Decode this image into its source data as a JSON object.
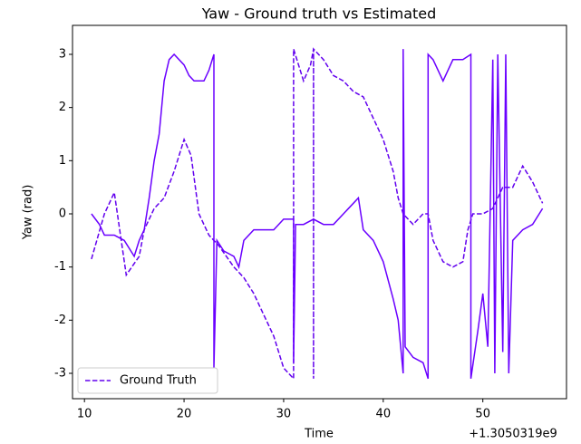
{
  "chart_data": {
    "type": "line",
    "title": "Yaw - Ground truth vs Estimated",
    "xlabel": "Time",
    "ylabel": "Yaw (rad)",
    "x_offset_label": "+1.3050319e9",
    "xlim": [
      8.8,
      58.4
    ],
    "ylim": [
      -3.477,
      3.545
    ],
    "xticks": [
      10,
      20,
      30,
      40,
      50
    ],
    "yticks": [
      -3,
      -2,
      -1,
      0,
      1,
      2,
      3
    ],
    "legend": "lower left",
    "series": [
      {
        "name": "Ground Truth",
        "color": "#6200ee",
        "dash": "dashed",
        "x": [
          10.7,
          12,
          13,
          14.2,
          15.5,
          16,
          17,
          18,
          19,
          20,
          20.7,
          21.5,
          22.5,
          23.5,
          25,
          26,
          27,
          28,
          29,
          30,
          31,
          31,
          31.5,
          32,
          32.7,
          33,
          33,
          33,
          34,
          35,
          36,
          37,
          38,
          39,
          40,
          41,
          41.5,
          42,
          43,
          44,
          44.5,
          45,
          46,
          47,
          48,
          48.5,
          49,
          50,
          51,
          52,
          53,
          54,
          55,
          56
        ],
        "values": [
          -0.85,
          0,
          0.4,
          -1.15,
          -0.8,
          -0.3,
          0.1,
          0.3,
          0.8,
          1.4,
          1.1,
          0,
          -0.4,
          -0.6,
          -1.0,
          -1.2,
          -1.5,
          -1.9,
          -2.3,
          -2.9,
          -3.1,
          3.1,
          2.8,
          2.5,
          2.8,
          3.1,
          -3.1,
          3.1,
          2.9,
          2.6,
          2.5,
          2.3,
          2.2,
          1.8,
          1.4,
          0.8,
          0.3,
          0,
          -0.2,
          0,
          0,
          -0.5,
          -0.9,
          -1.0,
          -0.9,
          -0.3,
          0,
          0,
          0.1,
          0.5,
          0.5,
          0.9,
          0.6,
          0.2
        ]
      },
      {
        "color": "#6a00ff",
        "dash": "solid",
        "x": [
          10.7,
          11.5,
          12,
          13,
          14,
          15,
          15.5,
          16,
          16.5,
          17,
          17.5,
          18,
          18.5,
          19,
          20,
          20.5,
          21,
          22,
          22.5,
          23,
          23,
          23.3,
          24,
          25,
          25.5,
          26,
          27,
          28,
          29,
          30,
          31,
          31,
          31.2,
          32,
          33,
          34,
          35,
          36,
          37,
          37.5,
          38,
          39,
          40,
          41,
          41.5,
          42,
          42,
          42.2,
          43,
          44,
          44.5,
          44.5,
          45,
          46,
          47,
          48,
          48.8,
          48.8,
          49.5,
          50,
          50.5,
          51,
          51.2,
          51.5,
          52,
          52.3,
          52.6,
          53,
          54,
          55,
          56
        ],
        "values": [
          0,
          -0.2,
          -0.4,
          -0.4,
          -0.5,
          -0.8,
          -0.5,
          -0.3,
          0.3,
          1.0,
          1.5,
          2.5,
          2.9,
          3.0,
          2.8,
          2.6,
          2.5,
          2.5,
          2.7,
          3.0,
          -2.9,
          -0.5,
          -0.7,
          -0.8,
          -1.0,
          -0.5,
          -0.3,
          -0.3,
          -0.3,
          -0.1,
          -0.1,
          -2.8,
          -0.2,
          -0.2,
          -0.1,
          -0.2,
          -0.2,
          0,
          0.2,
          0.3,
          -0.3,
          -0.5,
          -0.9,
          -1.6,
          -2.0,
          -3.0,
          3.1,
          -2.5,
          -2.7,
          -2.8,
          -3.1,
          3.0,
          2.9,
          2.5,
          2.9,
          2.9,
          3.0,
          -3.1,
          -2.2,
          -1.5,
          -2.5,
          2.9,
          -3.0,
          3.0,
          -2.6,
          3.0,
          -3.0,
          -0.5,
          -0.3,
          -0.2,
          0.1
        ]
      }
    ]
  }
}
